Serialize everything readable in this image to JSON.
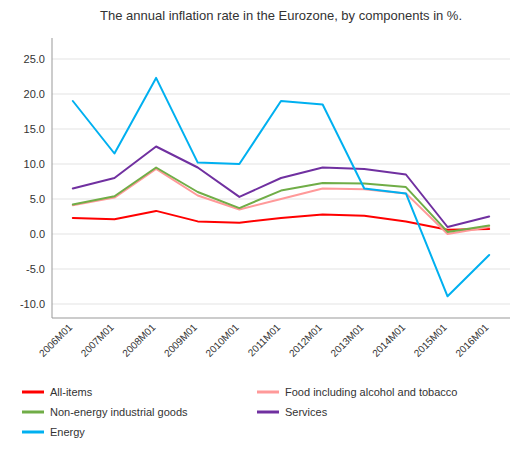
{
  "chart_data": {
    "type": "line",
    "title": "The annual inflation rate in the Eurozone, by components in %.",
    "categories": [
      "2006M01",
      "2007M01",
      "2008M01",
      "2009M01",
      "2010M01",
      "2011M01",
      "2012M01",
      "2013M01",
      "2014M01",
      "2015M01",
      "2016M01"
    ],
    "series": [
      {
        "name": "All-items",
        "color": "#FF0000",
        "values": [
          2.3,
          2.1,
          3.3,
          1.8,
          1.6,
          2.3,
          2.8,
          2.6,
          1.8,
          0.6,
          0.7
        ]
      },
      {
        "name": "Food including alcohol and tobacco",
        "color": "#FF9999",
        "values": [
          4.1,
          5.2,
          9.3,
          5.5,
          3.5,
          5.0,
          6.5,
          6.4,
          5.8,
          0.0,
          1.0
        ]
      },
      {
        "name": "Non-energy industrial goods",
        "color": "#70AD47",
        "values": [
          4.2,
          5.4,
          9.5,
          6.0,
          3.7,
          6.2,
          7.3,
          7.2,
          6.7,
          0.3,
          1.2
        ]
      },
      {
        "name": "Services",
        "color": "#7030A0",
        "values": [
          6.5,
          8.0,
          12.5,
          9.5,
          5.3,
          8.0,
          9.5,
          9.3,
          8.5,
          1.0,
          2.5
        ]
      },
      {
        "name": "Energy",
        "color": "#00B0F0",
        "values": [
          19.0,
          11.5,
          22.3,
          10.2,
          10.0,
          19.0,
          18.5,
          6.5,
          5.8,
          -8.9,
          -3.0
        ]
      }
    ],
    "ylim": [
      -12,
      28
    ],
    "yticks": [
      {
        "value": -10,
        "label": "-10.0"
      },
      {
        "value": -5,
        "label": "-5.0"
      },
      {
        "value": 0,
        "label": "0.0"
      },
      {
        "value": 5,
        "label": "5.0"
      },
      {
        "value": 10,
        "label": "10.0"
      },
      {
        "value": 15,
        "label": "15.0"
      },
      {
        "value": 20,
        "label": "20.0"
      },
      {
        "value": 25,
        "label": "25.0"
      }
    ],
    "grid": true,
    "legend": "bottom"
  }
}
